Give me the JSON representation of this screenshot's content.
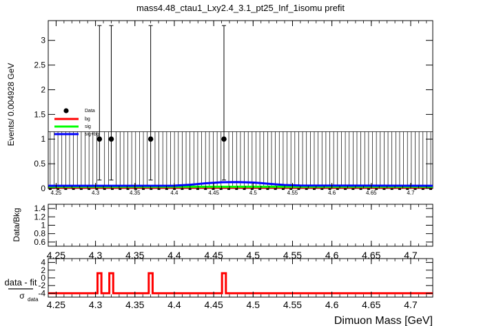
{
  "title": "mass4.48_ctau1_Lxy2.4_3.1_pt25_Inf_1isomu   prefit",
  "colors": {
    "data": "#000000",
    "bg": "#ff0000",
    "sig": "#00ff00",
    "sig_bg": "#0000ff",
    "pull": "#ff0000",
    "frame": "#000000"
  },
  "chart_data": [
    {
      "type": "scatter",
      "panel": "main",
      "ylabel": "Events/ 0.004928 GeV",
      "xlim": [
        4.24,
        4.728
      ],
      "ylim": [
        0,
        3.4
      ],
      "x_ticks": [
        "4.25",
        "4.3",
        "4.35",
        "4.4",
        "4.45",
        "4.5",
        "4.55",
        "4.6",
        "4.65",
        "4.7"
      ],
      "y_ticks": [
        "0",
        "0.5",
        "1",
        "1.5",
        "2",
        "2.5",
        "3"
      ],
      "bin_width": 0.004928,
      "data_points": [
        {
          "x": 4.305,
          "y": 1,
          "err_low": 0.83,
          "err_high": 2.3
        },
        {
          "x": 4.32,
          "y": 1,
          "err_low": 0.83,
          "err_high": 2.3
        },
        {
          "x": 4.37,
          "y": 1,
          "err_low": 0.83,
          "err_high": 2.3
        },
        {
          "x": 4.463,
          "y": 1,
          "err_low": 0.83,
          "err_high": 2.3
        }
      ],
      "empty_bin_error_high": 1.15,
      "series": [
        {
          "name": "bg",
          "x": [
            4.24,
            4.728
          ],
          "values": [
            0.02,
            0.02
          ]
        },
        {
          "name": "sig",
          "x": [
            4.24,
            4.728
          ],
          "values": [
            0.035,
            0.035
          ]
        },
        {
          "name": "sig+bg",
          "x": [
            4.24,
            4.4,
            4.42,
            4.44,
            4.46,
            4.48,
            4.5,
            4.52,
            4.54,
            4.56,
            4.728
          ],
          "values": [
            0.055,
            0.056,
            0.075,
            0.105,
            0.125,
            0.128,
            0.12,
            0.095,
            0.07,
            0.058,
            0.055
          ]
        }
      ],
      "legend": {
        "placement": "left",
        "entries": [
          "Data",
          "bg",
          "sig",
          "sig+bg"
        ]
      }
    },
    {
      "type": "scatter",
      "panel": "ratio",
      "ylabel": "Data/Bkg",
      "xlim": [
        4.24,
        4.728
      ],
      "ylim": [
        0.5,
        1.5
      ],
      "x_ticks": [
        "4.25",
        "4.3",
        "4.35",
        "4.4",
        "4.45",
        "4.5",
        "4.55",
        "4.6",
        "4.65",
        "4.7"
      ],
      "y_ticks": [
        "0.6",
        "0.8",
        "1",
        "1.2",
        "1.4"
      ]
    },
    {
      "type": "line",
      "panel": "pull",
      "ylabel_num": "data - fit",
      "ylabel_den": "σ",
      "ylabel_den_sub": "data",
      "xlabel": "Dimuon Mass [GeV]",
      "xlim": [
        4.24,
        4.728
      ],
      "ylim": [
        -5,
        5
      ],
      "x_ticks": [
        "4.25",
        "4.3",
        "4.35",
        "4.4",
        "4.45",
        "4.5",
        "4.55",
        "4.6",
        "4.65",
        "4.7"
      ],
      "y_ticks": [
        "-4",
        "-2",
        "0",
        "2",
        "4"
      ],
      "baseline": -4,
      "pulses": [
        {
          "x": 4.305,
          "value": 1.2
        },
        {
          "x": 4.32,
          "value": 1.2
        },
        {
          "x": 4.37,
          "value": 1.2
        },
        {
          "x": 4.463,
          "value": 1.2
        }
      ]
    }
  ]
}
